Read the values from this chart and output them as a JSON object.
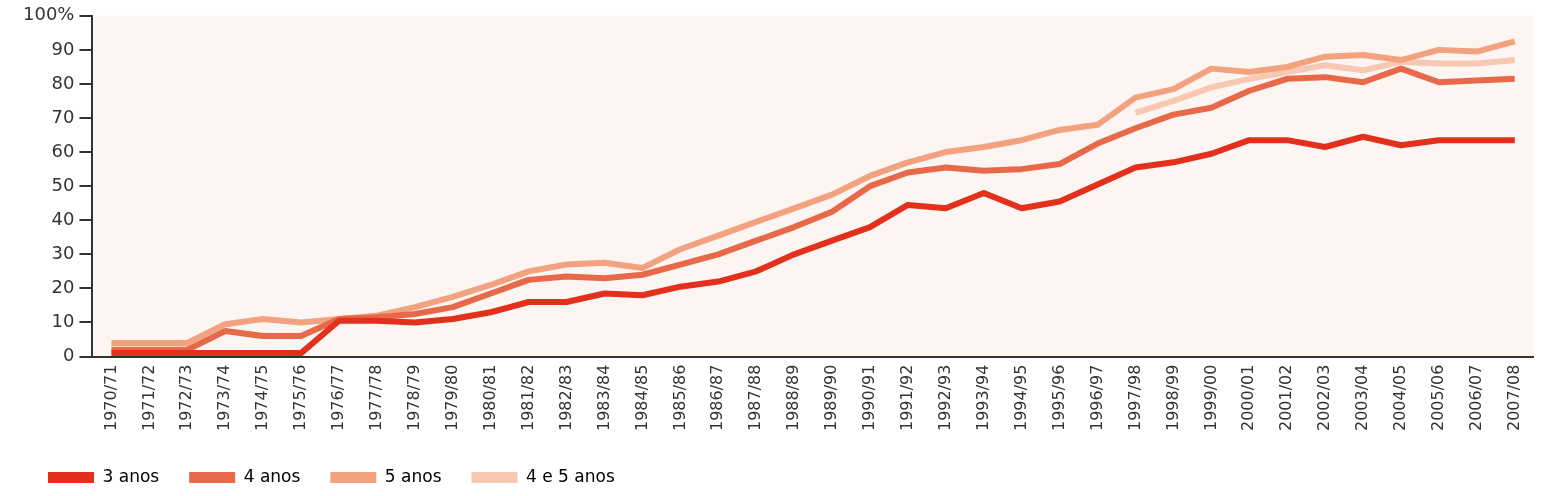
{
  "chart_data": {
    "type": "line",
    "categories": [
      "1970/71",
      "1971/72",
      "1972/73",
      "1973/74",
      "1974/75",
      "1975/76",
      "1976/77",
      "1977/78",
      "1978/79",
      "1979/80",
      "1980/81",
      "1981/82",
      "1982/83",
      "1983/84",
      "1984/85",
      "1985/86",
      "1986/87",
      "1987/88",
      "1988/89",
      "1989/90",
      "1990/91",
      "1991/92",
      "1992/93",
      "1993/94",
      "1994/95",
      "1995/96",
      "1996/97",
      "1997/98",
      "1998/99",
      "1999/00",
      "2000/01",
      "2001/02",
      "2002/03",
      "2003/04",
      "2004/05",
      "2005/06",
      "2006/07",
      "2007/08"
    ],
    "series": [
      {
        "name": "3 anos",
        "color": "#e2301c",
        "values": [
          1,
          1,
          1,
          1,
          1,
          1,
          10.5,
          10.5,
          10,
          11,
          13,
          16,
          16,
          18.5,
          18,
          20.5,
          22,
          25,
          30,
          34,
          38,
          44.5,
          43.5,
          48,
          43.5,
          45.5,
          50.5,
          55.5,
          57,
          59.5,
          63.5,
          63.5,
          61.5,
          64.5,
          62,
          63.5,
          63.5,
          63.5
        ]
      },
      {
        "name": "4 anos",
        "color": "#e8694a",
        "values": [
          2,
          2,
          2,
          7.5,
          6,
          6,
          11,
          11.5,
          12.5,
          14.5,
          18.5,
          22.5,
          23.5,
          23,
          24,
          27,
          30,
          34,
          38,
          42.5,
          50,
          54,
          55.5,
          54.5,
          55,
          56.5,
          62.5,
          67,
          71,
          73,
          78,
          81.5,
          82,
          80.5,
          84.5,
          80.5,
          81,
          81.5
        ]
      },
      {
        "name": "5 anos",
        "color": "#f2a27f",
        "values": [
          4,
          4,
          4,
          9.5,
          11,
          10,
          11,
          12,
          14.5,
          17.5,
          21,
          25,
          27,
          27.5,
          26,
          31.5,
          35.5,
          39.5,
          43.5,
          47.5,
          53,
          57,
          60,
          61.5,
          63.5,
          66.5,
          68,
          76,
          78.5,
          84.5,
          83.5,
          85,
          88,
          88.5,
          87,
          90,
          89.5,
          92.5
        ]
      },
      {
        "name": "4 e 5 anos",
        "color": "#f7c8b2",
        "values": [
          null,
          null,
          null,
          null,
          null,
          null,
          null,
          null,
          null,
          null,
          null,
          null,
          null,
          null,
          null,
          null,
          null,
          null,
          null,
          null,
          null,
          null,
          null,
          null,
          null,
          null,
          null,
          71.5,
          75,
          79,
          81.5,
          83.5,
          85.5,
          84,
          86.5,
          86,
          86,
          87
        ]
      }
    ],
    "ylim": [
      0,
      100
    ],
    "yticks": [
      0,
      10,
      20,
      30,
      40,
      50,
      60,
      70,
      80,
      90,
      {
        "value": 100,
        "label": "100%"
      }
    ],
    "grid": false,
    "legend": "bottom left",
    "marker": "none",
    "line_style": "solid"
  }
}
